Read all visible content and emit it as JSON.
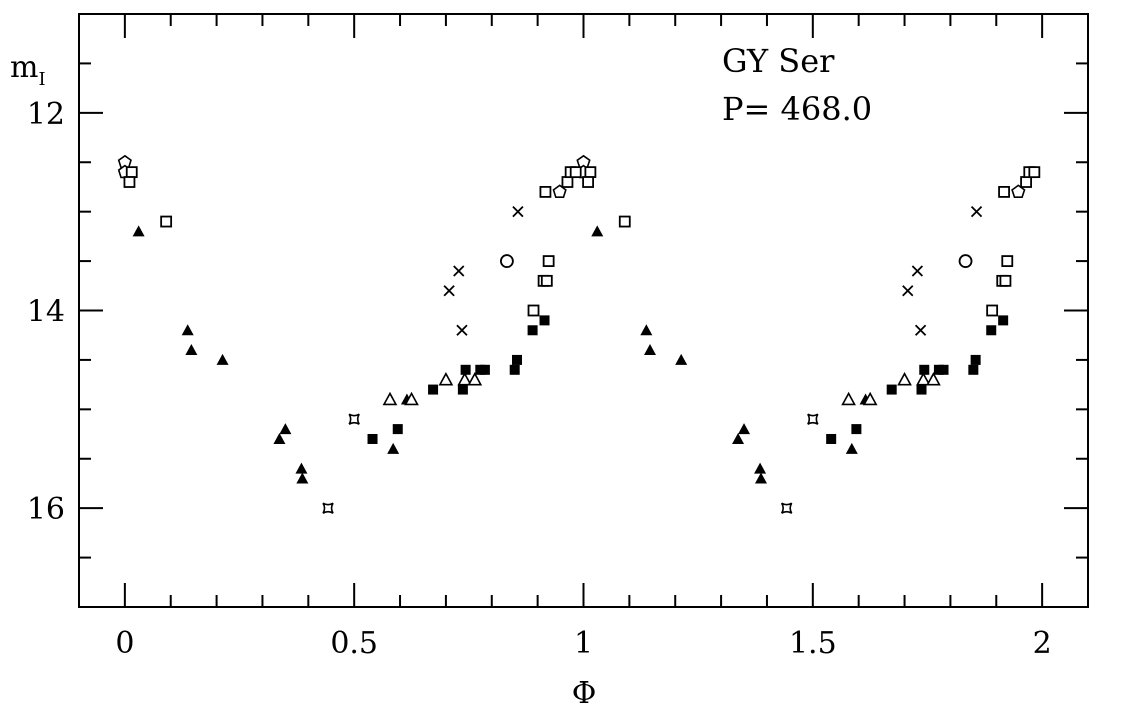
{
  "chart_data": {
    "type": "scatter",
    "title": "",
    "annotations": [
      "GY Ser",
      "P= 468.0"
    ],
    "xlabel": "Φ",
    "ylabel_main": "m",
    "ylabel_sub": "I",
    "xlim": [
      -0.1,
      2.1
    ],
    "ylim": [
      11,
      17
    ],
    "y_inverted": true,
    "grid": false,
    "phase_repeat": true,
    "x_ticks": [
      {
        "v": 0,
        "label": "0"
      },
      {
        "v": 0.5,
        "label": "0.5"
      },
      {
        "v": 1,
        "label": "1"
      },
      {
        "v": 1.5,
        "label": "1.5"
      },
      {
        "v": 2,
        "label": "2"
      }
    ],
    "y_ticks": [
      {
        "v": 12,
        "label": "12"
      },
      {
        "v": 14,
        "label": "14"
      },
      {
        "v": 16,
        "label": "16"
      }
    ],
    "points": [
      {
        "x": 0.0,
        "y": 12.5,
        "m": "pentagon-open"
      },
      {
        "x": 0.0,
        "y": 12.6,
        "m": "pentagon-open"
      },
      {
        "x": 0.015,
        "y": 12.6,
        "m": "square-open"
      },
      {
        "x": 0.01,
        "y": 12.7,
        "m": "square-open"
      },
      {
        "x": 0.09,
        "y": 13.1,
        "m": "square-open"
      },
      {
        "x": 0.03,
        "y": 13.2,
        "m": "triangle-filled"
      },
      {
        "x": 0.137,
        "y": 14.2,
        "m": "triangle-filled"
      },
      {
        "x": 0.145,
        "y": 14.4,
        "m": "triangle-filled"
      },
      {
        "x": 0.213,
        "y": 14.5,
        "m": "triangle-filled"
      },
      {
        "x": 0.35,
        "y": 15.2,
        "m": "triangle-filled"
      },
      {
        "x": 0.337,
        "y": 15.3,
        "m": "triangle-filled"
      },
      {
        "x": 0.385,
        "y": 15.6,
        "m": "triangle-filled"
      },
      {
        "x": 0.387,
        "y": 15.7,
        "m": "triangle-filled"
      },
      {
        "x": 0.443,
        "y": 16.0,
        "m": "star"
      },
      {
        "x": 0.5,
        "y": 15.1,
        "m": "star"
      },
      {
        "x": 0.54,
        "y": 15.3,
        "m": "square-filled"
      },
      {
        "x": 0.595,
        "y": 15.2,
        "m": "square-filled"
      },
      {
        "x": 0.585,
        "y": 15.4,
        "m": "triangle-filled"
      },
      {
        "x": 0.578,
        "y": 14.9,
        "m": "triangle-open"
      },
      {
        "x": 0.615,
        "y": 14.9,
        "m": "triangle-filled"
      },
      {
        "x": 0.625,
        "y": 14.9,
        "m": "triangle-open"
      },
      {
        "x": 0.672,
        "y": 14.8,
        "m": "square-filled"
      },
      {
        "x": 0.7,
        "y": 14.7,
        "m": "triangle-open"
      },
      {
        "x": 0.737,
        "y": 14.8,
        "m": "square-filled"
      },
      {
        "x": 0.743,
        "y": 14.6,
        "m": "square-filled"
      },
      {
        "x": 0.741,
        "y": 14.7,
        "m": "triangle-open"
      },
      {
        "x": 0.763,
        "y": 14.7,
        "m": "triangle-open"
      },
      {
        "x": 0.775,
        "y": 14.6,
        "m": "square-filled"
      },
      {
        "x": 0.785,
        "y": 14.6,
        "m": "square-filled"
      },
      {
        "x": 0.85,
        "y": 14.6,
        "m": "square-filled"
      },
      {
        "x": 0.855,
        "y": 14.5,
        "m": "square-filled"
      },
      {
        "x": 0.889,
        "y": 14.2,
        "m": "square-filled"
      },
      {
        "x": 0.915,
        "y": 14.1,
        "m": "square-filled"
      },
      {
        "x": 0.891,
        "y": 14.0,
        "m": "square-open"
      },
      {
        "x": 0.913,
        "y": 13.7,
        "m": "square-open"
      },
      {
        "x": 0.92,
        "y": 13.7,
        "m": "square-open"
      },
      {
        "x": 0.924,
        "y": 13.5,
        "m": "square-open"
      },
      {
        "x": 0.833,
        "y": 13.5,
        "m": "circle-open"
      },
      {
        "x": 0.728,
        "y": 13.6,
        "m": "cross"
      },
      {
        "x": 0.707,
        "y": 13.8,
        "m": "cross"
      },
      {
        "x": 0.735,
        "y": 14.2,
        "m": "cross"
      },
      {
        "x": 0.857,
        "y": 13.0,
        "m": "cross"
      },
      {
        "x": 0.917,
        "y": 12.8,
        "m": "square-open"
      },
      {
        "x": 0.948,
        "y": 12.8,
        "m": "pentagon-open"
      },
      {
        "x": 0.965,
        "y": 12.7,
        "m": "square-open"
      },
      {
        "x": 0.972,
        "y": 12.6,
        "m": "square-open"
      },
      {
        "x": 0.983,
        "y": 12.6,
        "m": "square-open"
      }
    ]
  }
}
